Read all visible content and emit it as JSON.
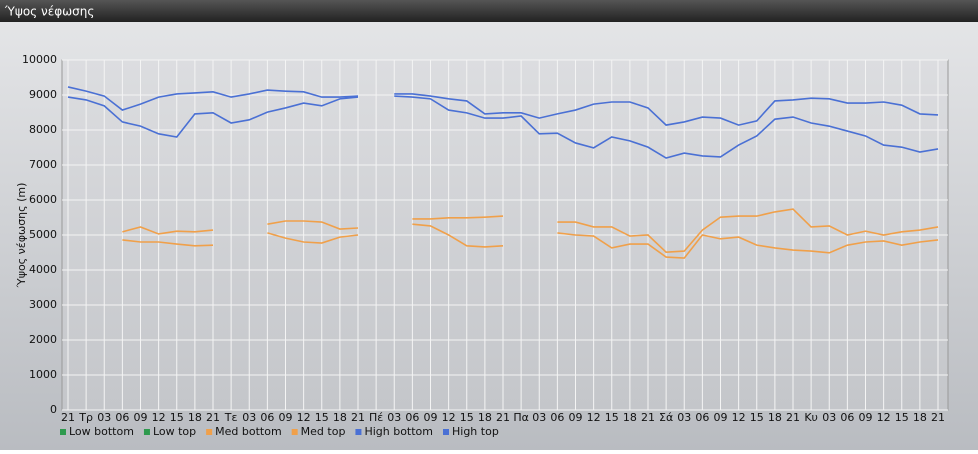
{
  "chart_data": {
    "type": "line",
    "title": "Ύψος νέφωσης",
    "y_label": "Ύψος νέφωσης (m)",
    "categories": [
      "21",
      "Τρ",
      "03",
      "06",
      "09",
      "12",
      "15",
      "18",
      "21",
      "Τε",
      "03",
      "06",
      "09",
      "12",
      "15",
      "18",
      "21",
      "Πέ",
      "03",
      "06",
      "09",
      "12",
      "15",
      "18",
      "21",
      "Πα",
      "03",
      "06",
      "09",
      "12",
      "15",
      "18",
      "21",
      "Σά",
      "03",
      "06",
      "09",
      "12",
      "15",
      "18",
      "21",
      "Κυ",
      "03",
      "06",
      "09",
      "12",
      "15",
      "18",
      "21"
    ],
    "ylim": [
      0,
      10000
    ],
    "yticks": [
      0,
      1000,
      2000,
      3000,
      4000,
      5000,
      6000,
      7000,
      8000,
      9000,
      10000
    ],
    "grid": true,
    "series": [
      {
        "name": "Low bottom",
        "color": "#2e9a4e",
        "values": [
          null,
          null,
          null,
          null,
          null,
          null,
          null,
          null,
          null,
          null,
          null,
          null,
          null,
          null,
          null,
          null,
          null,
          null,
          null,
          null,
          null,
          null,
          null,
          null,
          null,
          null,
          null,
          null,
          null,
          null,
          null,
          null,
          null,
          null,
          null,
          null,
          null,
          null,
          null,
          null,
          null,
          null,
          null,
          null,
          null,
          null,
          null,
          null,
          null
        ]
      },
      {
        "name": "Low top",
        "color": "#2e9a4e",
        "values": [
          null,
          null,
          null,
          null,
          null,
          null,
          null,
          null,
          null,
          null,
          null,
          null,
          null,
          null,
          null,
          null,
          null,
          null,
          null,
          null,
          null,
          null,
          null,
          null,
          null,
          null,
          null,
          null,
          null,
          null,
          null,
          null,
          null,
          null,
          null,
          null,
          null,
          null,
          null,
          null,
          null,
          null,
          null,
          null,
          null,
          null,
          null,
          null,
          null
        ]
      },
      {
        "name": "Med bottom",
        "color": "#f0a04a",
        "values": [
          null,
          null,
          null,
          4860,
          4800,
          4800,
          4740,
          4690,
          4710,
          null,
          null,
          5060,
          4910,
          4800,
          4770,
          4940,
          5000,
          null,
          null,
          5310,
          5260,
          5000,
          4690,
          4660,
          4690,
          null,
          null,
          5060,
          5000,
          4970,
          4630,
          4740,
          4740,
          4370,
          4340,
          5000,
          4890,
          4940,
          4710,
          4630,
          4570,
          4540,
          4490,
          4710,
          4800,
          4830,
          4710,
          4800,
          4860
        ]
      },
      {
        "name": "Med top",
        "color": "#f0a04a",
        "values": [
          null,
          null,
          null,
          5090,
          5230,
          5030,
          5110,
          5090,
          5140,
          null,
          null,
          5310,
          5400,
          5400,
          5370,
          5170,
          5200,
          null,
          null,
          5460,
          5460,
          5490,
          5490,
          5510,
          5540,
          null,
          null,
          5370,
          5370,
          5230,
          5230,
          4970,
          5000,
          4510,
          4540,
          5140,
          5510,
          5540,
          5540,
          5660,
          5740,
          5230,
          5260,
          5000,
          5110,
          5000,
          5090,
          5140,
          5230
        ]
      },
      {
        "name": "High bottom",
        "color": "#4a70d4",
        "values": [
          8940,
          8860,
          8690,
          8230,
          8110,
          7890,
          7800,
          8460,
          8490,
          8200,
          8290,
          8510,
          8630,
          8770,
          8690,
          8890,
          8940,
          null,
          8970,
          8940,
          8890,
          8570,
          8490,
          8340,
          8340,
          8400,
          7890,
          7910,
          7630,
          7490,
          7800,
          7690,
          7510,
          7200,
          7340,
          7260,
          7230,
          7570,
          7830,
          8310,
          8370,
          8200,
          8110,
          7970,
          7830,
          7570,
          7510,
          7370,
          7460
        ]
      },
      {
        "name": "High top",
        "color": "#4a70d4",
        "values": [
          9230,
          9110,
          8970,
          8570,
          8740,
          8940,
          9030,
          9060,
          9090,
          8940,
          9030,
          9140,
          9110,
          9090,
          8940,
          8940,
          8970,
          null,
          9030,
          9030,
          8970,
          8890,
          8830,
          8460,
          8490,
          8490,
          8340,
          8460,
          8570,
          8740,
          8800,
          8800,
          8630,
          8140,
          8230,
          8370,
          8340,
          8140,
          8260,
          8830,
          8860,
          8910,
          8890,
          8770,
          8770,
          8800,
          8710,
          8460,
          8430
        ]
      }
    ]
  }
}
